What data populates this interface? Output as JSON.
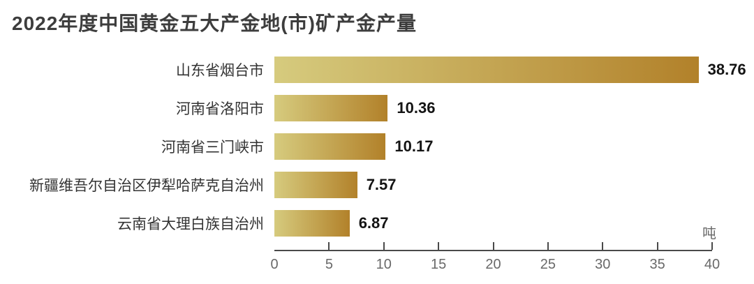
{
  "page": {
    "title": "2022年度中国黄金五大产金地(市)矿产金产量",
    "unit_label": "吨"
  },
  "colors": {
    "background": "#FFFFFF",
    "title_text": "#3D3D3D",
    "category_text": "#333333",
    "value_text": "#141414",
    "axis_line": "#4A4A4A",
    "tick_text": "#696969",
    "bar_gradient_start": "#D6CB7E",
    "bar_gradient_end": "#B2812A"
  },
  "chart_data": {
    "type": "bar",
    "orientation": "horizontal",
    "title": "2022年度中国黄金五大产金地(市)矿产金产量",
    "categories": [
      "山东省烟台市",
      "河南省洛阳市",
      "河南省三门峡市",
      "新疆维吾尔自治区伊犁哈萨克自治州",
      "云南省大理白族自治州"
    ],
    "values": [
      38.76,
      10.36,
      10.17,
      7.57,
      6.87
    ],
    "value_labels": [
      "38.76",
      "10.36",
      "10.17",
      "7.57",
      "6.87"
    ],
    "unit": "吨",
    "xlabel": "吨",
    "xlim": [
      0,
      40
    ],
    "xticks": [
      0,
      5,
      10,
      15,
      20,
      25,
      30,
      35,
      40
    ],
    "grid": false,
    "legend": false,
    "sort_order": "descending"
  }
}
